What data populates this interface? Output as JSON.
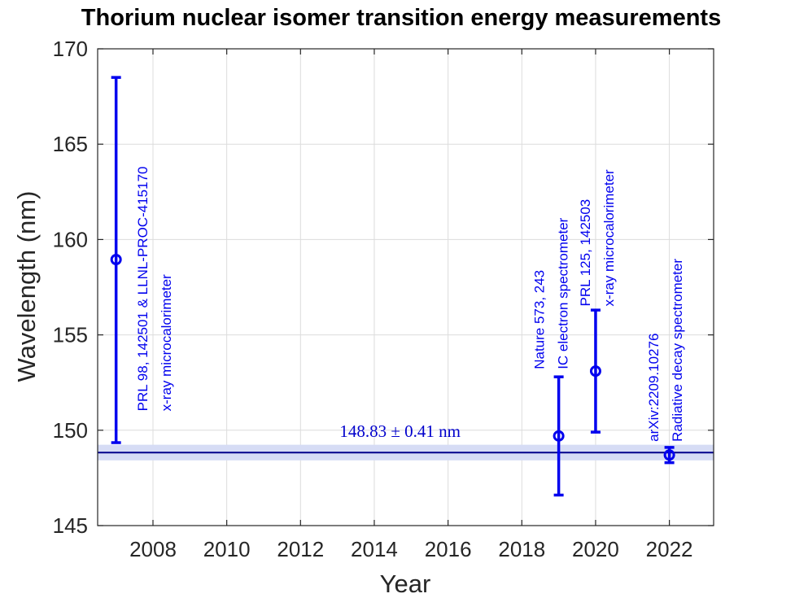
{
  "chart_data": {
    "type": "scatter",
    "title": "Thorium nuclear isomer transition energy measurements",
    "xlabel": "Year",
    "ylabel": "Wavelength (nm)",
    "xlim": [
      2006.5,
      2023.2
    ],
    "ylim": [
      145,
      170
    ],
    "xticks": [
      2008,
      2010,
      2012,
      2014,
      2016,
      2018,
      2020,
      2022
    ],
    "yticks": [
      145,
      150,
      155,
      160,
      165,
      170
    ],
    "grid": true,
    "points": [
      {
        "x": 2007,
        "y": 158.95,
        "y_low": 149.35,
        "y_high": 168.5,
        "lines": [
          "PRL 98, 142501 & LLNL-PROC-415170",
          "x-ray microcalorimeter"
        ]
      },
      {
        "x": 2019,
        "y": 149.7,
        "y_low": 146.6,
        "y_high": 152.8,
        "lines": [
          "Nature 573, 243",
          "IC electron spectrometer"
        ]
      },
      {
        "x": 2020,
        "y": 153.1,
        "y_low": 149.9,
        "y_high": 156.3,
        "lines": [
          "PRL 125, 142503",
          "x-ray microcalorimeter"
        ]
      },
      {
        "x": 2022,
        "y": 148.7,
        "y_low": 148.3,
        "y_high": 149.1,
        "lines": [
          "arXiv:2209.10276",
          "Radiative decay spectrometer"
        ]
      }
    ],
    "mean_line": {
      "value": 148.83,
      "uncertainty": 0.41,
      "label": "148.83 ± 0.41 nm"
    },
    "colors": {
      "points": "#0000ee",
      "mean_line": "#00008b",
      "band": "#d6dcf5"
    }
  }
}
